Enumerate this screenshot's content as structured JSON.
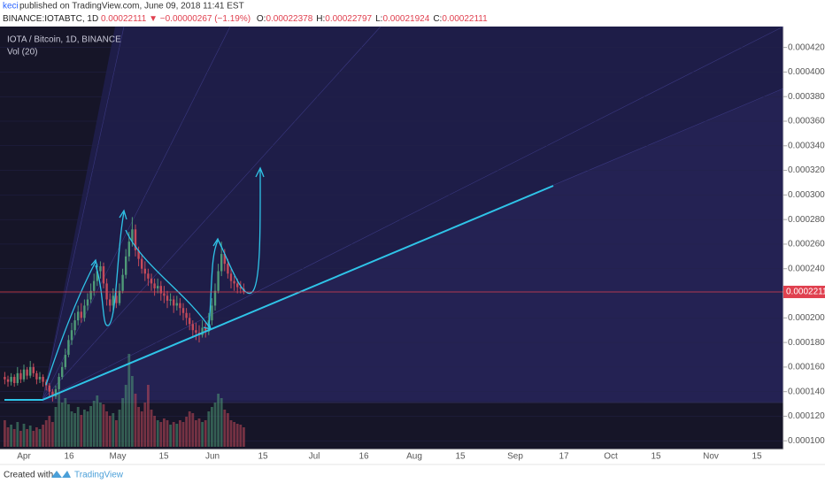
{
  "header": {
    "author": "keci",
    "published": "published on TradingView.com, June 09, 2018 11:41 EST",
    "symbol": "BINANCE:IOTABTC, 1D",
    "price": "0.00022111",
    "change": "−0.00000267 (−1.19%)",
    "ohlc": [
      {
        "label": "O:",
        "value": "0.00022378"
      },
      {
        "label": "H:",
        "value": "0.00022797"
      },
      {
        "label": "L:",
        "value": "0.00021924"
      },
      {
        "label": "C:",
        "value": "0.00022111"
      }
    ]
  },
  "chart_data": {
    "type": "candlestick",
    "legend": [
      "IOTA / Bitcoin, 1D, BINANCE",
      "Vol (20)"
    ],
    "x_labels": [
      "Apr",
      "16",
      "May",
      "15",
      "Jun",
      "15",
      "Jul",
      "16",
      "Aug",
      "15",
      "Sep",
      "17",
      "Oct",
      "15",
      "Nov",
      "15"
    ],
    "up_color": "#4f9a77",
    "down_color": "#c44a5a",
    "last_price_color": "#e0404f",
    "ylim": [
      9.3e-05,
      0.000437
    ],
    "yticks": [
      {
        "value": 0.0001,
        "label": "0.00010000"
      },
      {
        "value": 0.00012,
        "label": "0.00012000"
      },
      {
        "value": 0.00014,
        "label": "0.00014000"
      },
      {
        "value": 0.00016,
        "label": "0.00016000"
      },
      {
        "value": 0.00018,
        "label": "0.00018000"
      },
      {
        "value": 0.0002,
        "label": "0.00020000"
      },
      {
        "value": 0.00022,
        "label": "0.00022000"
      },
      {
        "value": 0.00024,
        "label": "0.00024000"
      },
      {
        "value": 0.00026,
        "label": "0.00026000"
      },
      {
        "value": 0.00028,
        "label": "0.00028000"
      },
      {
        "value": 0.0003,
        "label": "0.00030000"
      },
      {
        "value": 0.00032,
        "label": "0.00032000"
      },
      {
        "value": 0.00034,
        "label": "0.00034000"
      },
      {
        "value": 0.00036,
        "label": "0.00036000"
      },
      {
        "value": 0.00038,
        "label": "0.00038000"
      },
      {
        "value": 0.0004,
        "label": "0.00040000"
      },
      {
        "value": 0.00042,
        "label": "0.00042000"
      }
    ],
    "open": [
      0.000152,
      0.00015,
      0.000148,
      0.000152,
      0.000147,
      0.000155,
      0.00015,
      0.000158,
      0.000153,
      0.00016,
      0.000155,
      0.00015,
      0.000152,
      0.000148,
      0.000145,
      0.00014,
      0.000136,
      0.000142,
      0.000152,
      0.00016,
      0.00017,
      0.000182,
      0.00019,
      0.000198,
      0.000205,
      0.0002,
      0.00021,
      0.000215,
      0.000222,
      0.00023,
      0.000238,
      0.000242,
      0.000228,
      0.000215,
      0.00021,
      0.000218,
      0.000212,
      0.000222,
      0.000235,
      0.00025,
      0.000262,
      0.000272,
      0.000255,
      0.000248,
      0.00024,
      0.000236,
      0.000232,
      0.000228,
      0.000224,
      0.000226,
      0.00022,
      0.000218,
      0.000214,
      0.000215,
      0.00021,
      0.000212,
      0.000208,
      0.000204,
      0.0002,
      0.000195,
      0.00019,
      0.000188,
      0.000186,
      0.000192,
      0.000189,
      0.000198,
      0.00021,
      0.000222,
      0.000238,
      0.000252,
      0.000244,
      0.000236,
      0.00023,
      0.000228,
      0.000225,
      0.00022378
    ],
    "high": [
      0.000156,
      0.000153,
      0.000155,
      0.000154,
      0.00016,
      0.000158,
      0.000162,
      0.00016,
      0.000165,
      0.000163,
      0.000157,
      0.000156,
      0.000154,
      0.00015,
      0.000147,
      0.000142,
      0.000145,
      0.000155,
      0.000164,
      0.000175,
      0.000186,
      0.000196,
      0.000204,
      0.00021,
      0.000212,
      0.000215,
      0.00022,
      0.000228,
      0.000236,
      0.000244,
      0.000246,
      0.000245,
      0.000232,
      0.00022,
      0.000224,
      0.000222,
      0.000228,
      0.00024,
      0.000256,
      0.00027,
      0.000282,
      0.000276,
      0.000258,
      0.000252,
      0.000246,
      0.00024,
      0.000236,
      0.000232,
      0.000232,
      0.00023,
      0.000226,
      0.000222,
      0.00022,
      0.000218,
      0.000218,
      0.000216,
      0.000212,
      0.000208,
      0.000204,
      0.000198,
      0.000196,
      0.000194,
      0.000198,
      0.000196,
      0.000204,
      0.000216,
      0.000228,
      0.000244,
      0.000262,
      0.000256,
      0.000248,
      0.00024,
      0.000234,
      0.000232,
      0.00023,
      0.00022797
    ],
    "low": [
      0.000146,
      0.000144,
      0.000145,
      0.000144,
      0.000145,
      0.000147,
      0.000148,
      0.00015,
      0.000151,
      0.000152,
      0.000146,
      0.000147,
      0.000144,
      0.000141,
      0.000136,
      0.000132,
      0.000134,
      0.00014,
      0.00015,
      0.000158,
      0.000168,
      0.000178,
      0.000186,
      0.000194,
      0.000196,
      0.000197,
      0.000206,
      0.000212,
      0.000218,
      0.000226,
      0.000232,
      0.000224,
      0.00021,
      0.000205,
      0.000206,
      0.000208,
      0.00021,
      0.00022,
      0.000232,
      0.000246,
      0.000258,
      0.00025,
      0.000242,
      0.000236,
      0.00023,
      0.000226,
      0.000222,
      0.000218,
      0.00022,
      0.000214,
      0.000212,
      0.000208,
      0.00021,
      0.000204,
      0.000206,
      0.000202,
      0.000198,
      0.000194,
      0.00019,
      0.000184,
      0.000182,
      0.00018,
      0.000184,
      0.000184,
      0.000186,
      0.000194,
      0.000206,
      0.00022,
      0.000234,
      0.000238,
      0.000232,
      0.000224,
      0.000222,
      0.00022,
      0.00022,
      0.00021924
    ],
    "close": [
      0.00015,
      0.000148,
      0.000152,
      0.000147,
      0.000155,
      0.00015,
      0.000158,
      0.000153,
      0.00016,
      0.000155,
      0.00015,
      0.000152,
      0.000148,
      0.000145,
      0.00014,
      0.000136,
      0.000142,
      0.000152,
      0.00016,
      0.00017,
      0.000182,
      0.00019,
      0.000198,
      0.000205,
      0.0002,
      0.00021,
      0.000215,
      0.000222,
      0.00023,
      0.000238,
      0.000242,
      0.000228,
      0.000215,
      0.00021,
      0.000218,
      0.000212,
      0.000222,
      0.000235,
      0.00025,
      0.000262,
      0.000272,
      0.000255,
      0.000248,
      0.00024,
      0.000236,
      0.000232,
      0.000228,
      0.000224,
      0.000226,
      0.00022,
      0.000218,
      0.000214,
      0.000215,
      0.00021,
      0.000212,
      0.000208,
      0.000204,
      0.0002,
      0.000195,
      0.00019,
      0.000188,
      0.000186,
      0.000192,
      0.000189,
      0.000198,
      0.00021,
      0.000222,
      0.000238,
      0.000252,
      0.000244,
      0.000236,
      0.00023,
      0.000228,
      0.000225,
      0.00022378,
      0.00022111
    ],
    "volume": [
      30,
      22,
      25,
      20,
      28,
      18,
      26,
      20,
      24,
      18,
      22,
      20,
      25,
      30,
      35,
      28,
      45,
      60,
      50,
      55,
      48,
      40,
      38,
      45,
      36,
      42,
      40,
      46,
      52,
      58,
      50,
      48,
      40,
      35,
      38,
      30,
      42,
      55,
      70,
      105,
      80,
      60,
      45,
      40,
      50,
      70,
      42,
      35,
      30,
      28,
      32,
      30,
      25,
      28,
      26,
      30,
      28,
      34,
      40,
      38,
      30,
      32,
      28,
      30,
      40,
      45,
      50,
      60,
      55,
      42,
      38,
      30,
      28,
      26,
      25,
      22
    ],
    "footer": {
      "created": "Created with",
      "brand": "TradingView"
    }
  }
}
